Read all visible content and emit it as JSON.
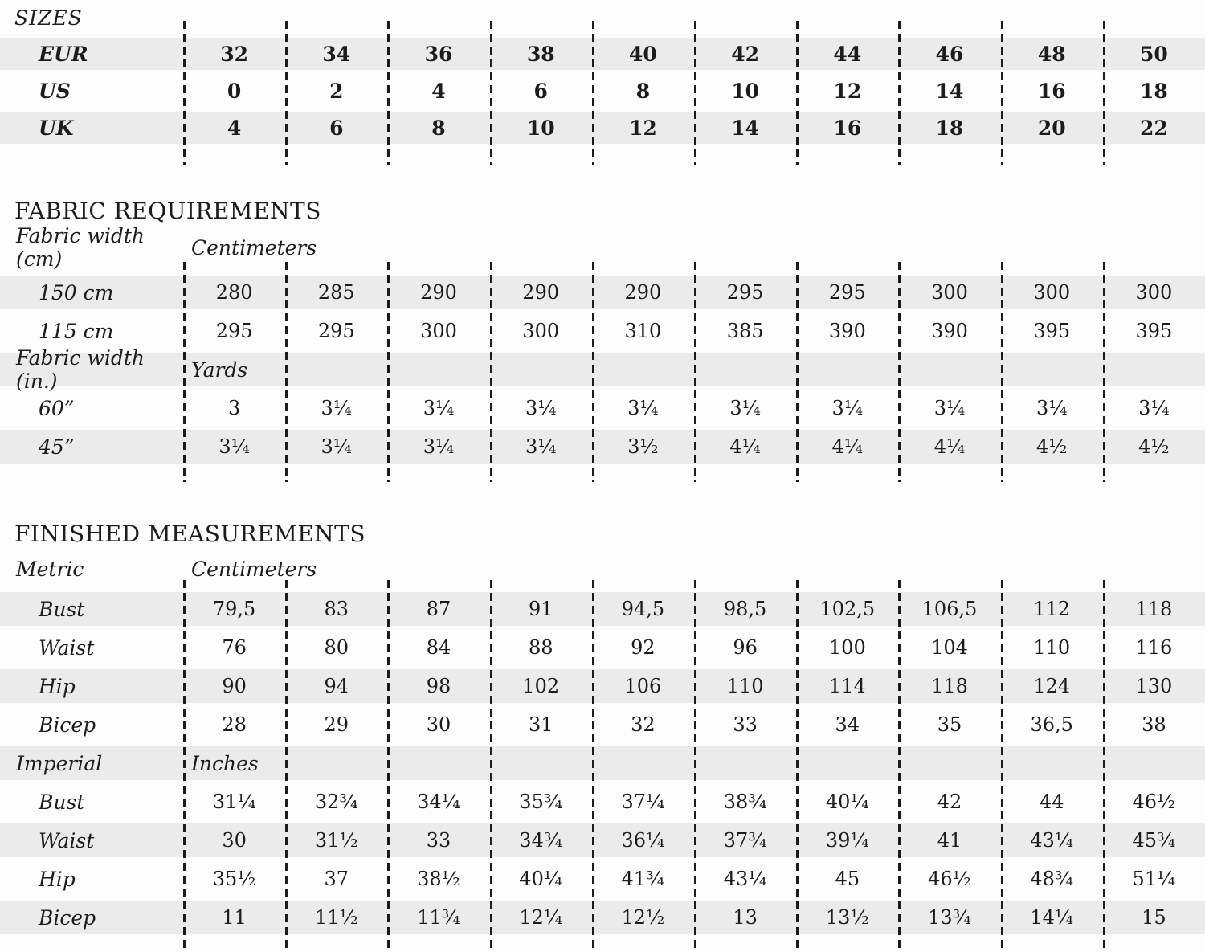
{
  "colors": {
    "background": "#fdfdfd",
    "band": "#ebebeb",
    "text": "#1c1c1c",
    "dash": "#1c1c1c"
  },
  "sizes": {
    "title": "SIZES",
    "rows": [
      {
        "label": "EUR",
        "values": [
          "32",
          "34",
          "36",
          "38",
          "40",
          "42",
          "44",
          "46",
          "48",
          "50"
        ]
      },
      {
        "label": "US",
        "values": [
          "0",
          "2",
          "4",
          "6",
          "8",
          "10",
          "12",
          "14",
          "16",
          "18"
        ]
      },
      {
        "label": "UK",
        "values": [
          "4",
          "6",
          "8",
          "10",
          "12",
          "14",
          "16",
          "18",
          "20",
          "22"
        ]
      }
    ]
  },
  "fabric": {
    "title": "FABRIC REQUIREMENTS",
    "groups": [
      {
        "label": "Fabric width (cm)",
        "unit": "Centimeters",
        "rows": [
          {
            "label": "150 cm",
            "values": [
              "280",
              "285",
              "290",
              "290",
              "290",
              "295",
              "295",
              "300",
              "300",
              "300"
            ]
          },
          {
            "label": "115 cm",
            "values": [
              "295",
              "295",
              "300",
              "300",
              "310",
              "385",
              "390",
              "390",
              "395",
              "395"
            ]
          }
        ]
      },
      {
        "label": "Fabric width (in.)",
        "unit": "Yards",
        "rows": [
          {
            "label": "60”",
            "values": [
              "3",
              "3¼",
              "3¼",
              "3¼",
              "3¼",
              "3¼",
              "3¼",
              "3¼",
              "3¼",
              "3¼"
            ]
          },
          {
            "label": "45”",
            "values": [
              "3¼",
              "3¼",
              "3¼",
              "3¼",
              "3½",
              "4¼",
              "4¼",
              "4¼",
              "4½",
              "4½"
            ]
          }
        ]
      }
    ]
  },
  "finished": {
    "title": "FINISHED MEASUREMENTS",
    "groups": [
      {
        "label": "Metric",
        "unit": "Centimeters",
        "rows": [
          {
            "label": "Bust",
            "values": [
              "79,5",
              "83",
              "87",
              "91",
              "94,5",
              "98,5",
              "102,5",
              "106,5",
              "112",
              "118"
            ]
          },
          {
            "label": "Waist",
            "values": [
              "76",
              "80",
              "84",
              "88",
              "92",
              "96",
              "100",
              "104",
              "110",
              "116"
            ]
          },
          {
            "label": "Hip",
            "values": [
              "90",
              "94",
              "98",
              "102",
              "106",
              "110",
              "114",
              "118",
              "124",
              "130"
            ]
          },
          {
            "label": "Bicep",
            "values": [
              "28",
              "29",
              "30",
              "31",
              "32",
              "33",
              "34",
              "35",
              "36,5",
              "38"
            ]
          }
        ]
      },
      {
        "label": "Imperial",
        "unit": "Inches",
        "rows": [
          {
            "label": "Bust",
            "values": [
              "31¼",
              "32¾",
              "34¼",
              "35¾",
              "37¼",
              "38¾",
              "40¼",
              "42",
              "44",
              "46½"
            ]
          },
          {
            "label": "Waist",
            "values": [
              "30",
              "31½",
              "33",
              "34¾",
              "36¼",
              "37¾",
              "39¼",
              "41",
              "43¼",
              "45¾"
            ]
          },
          {
            "label": "Hip",
            "values": [
              "35½",
              "37",
              "38½",
              "40¼",
              "41¾",
              "43¼",
              "45",
              "46½",
              "48¾",
              "51¼"
            ]
          },
          {
            "label": "Bicep",
            "values": [
              "11",
              "11½",
              "11¾",
              "12¼",
              "12½",
              "13",
              "13½",
              "13¾",
              "14¼",
              "15"
            ]
          }
        ]
      }
    ]
  }
}
